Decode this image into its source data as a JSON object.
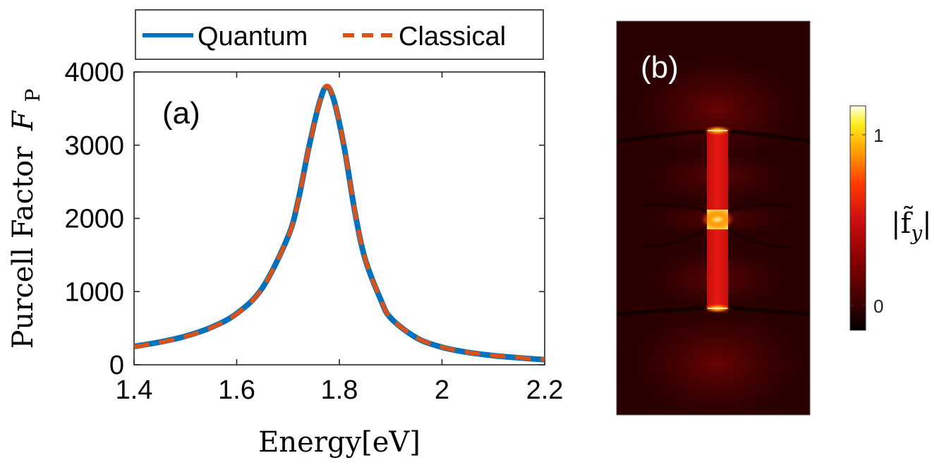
{
  "chart_data": [
    {
      "type": "line",
      "panel_label": "(a)",
      "xlabel": "Energy[eV]",
      "ylabel": "Purcell Factor",
      "ylabel_symbol": "F",
      "ylabel_subscript": "P",
      "xlim": [
        1.4,
        2.2
      ],
      "ylim": [
        0,
        4000
      ],
      "xticks": [
        "1.4",
        "1.6",
        "1.8",
        "2",
        "2.2"
      ],
      "yticks": [
        "0",
        "1000",
        "2000",
        "3000",
        "4000"
      ],
      "grid": false,
      "legend_position": "above",
      "x": [
        1.4,
        1.45,
        1.5,
        1.55,
        1.6,
        1.65,
        1.7,
        1.72,
        1.74,
        1.76,
        1.775,
        1.79,
        1.81,
        1.83,
        1.85,
        1.88,
        1.9,
        1.95,
        2.0,
        2.05,
        2.1,
        2.15,
        2.2
      ],
      "series": [
        {
          "name": "Quantum",
          "color": "#0072BD",
          "style": "solid",
          "values": [
            250,
            310,
            390,
            510,
            700,
            1050,
            1750,
            2250,
            2950,
            3550,
            3800,
            3600,
            2950,
            2100,
            1450,
            900,
            640,
            370,
            240,
            170,
            125,
            95,
            70
          ]
        },
        {
          "name": "Classical",
          "color": "#D95319",
          "style": "dashed",
          "values": [
            245,
            305,
            385,
            505,
            695,
            1045,
            1745,
            2245,
            2945,
            3545,
            3810,
            3610,
            2960,
            2110,
            1455,
            905,
            642,
            372,
            242,
            172,
            127,
            96,
            71
          ]
        }
      ]
    },
    {
      "type": "heatmap",
      "panel_label": "(b)",
      "colorbar_label": "|f̃y|",
      "colorbar_ticks": [
        "1",
        "0"
      ],
      "colormap": [
        "#000000",
        "#3a0000",
        "#8b0000",
        "#d01010",
        "#ff3a00",
        "#ffa000",
        "#ffee20",
        "#ffffe8"
      ]
    }
  ]
}
